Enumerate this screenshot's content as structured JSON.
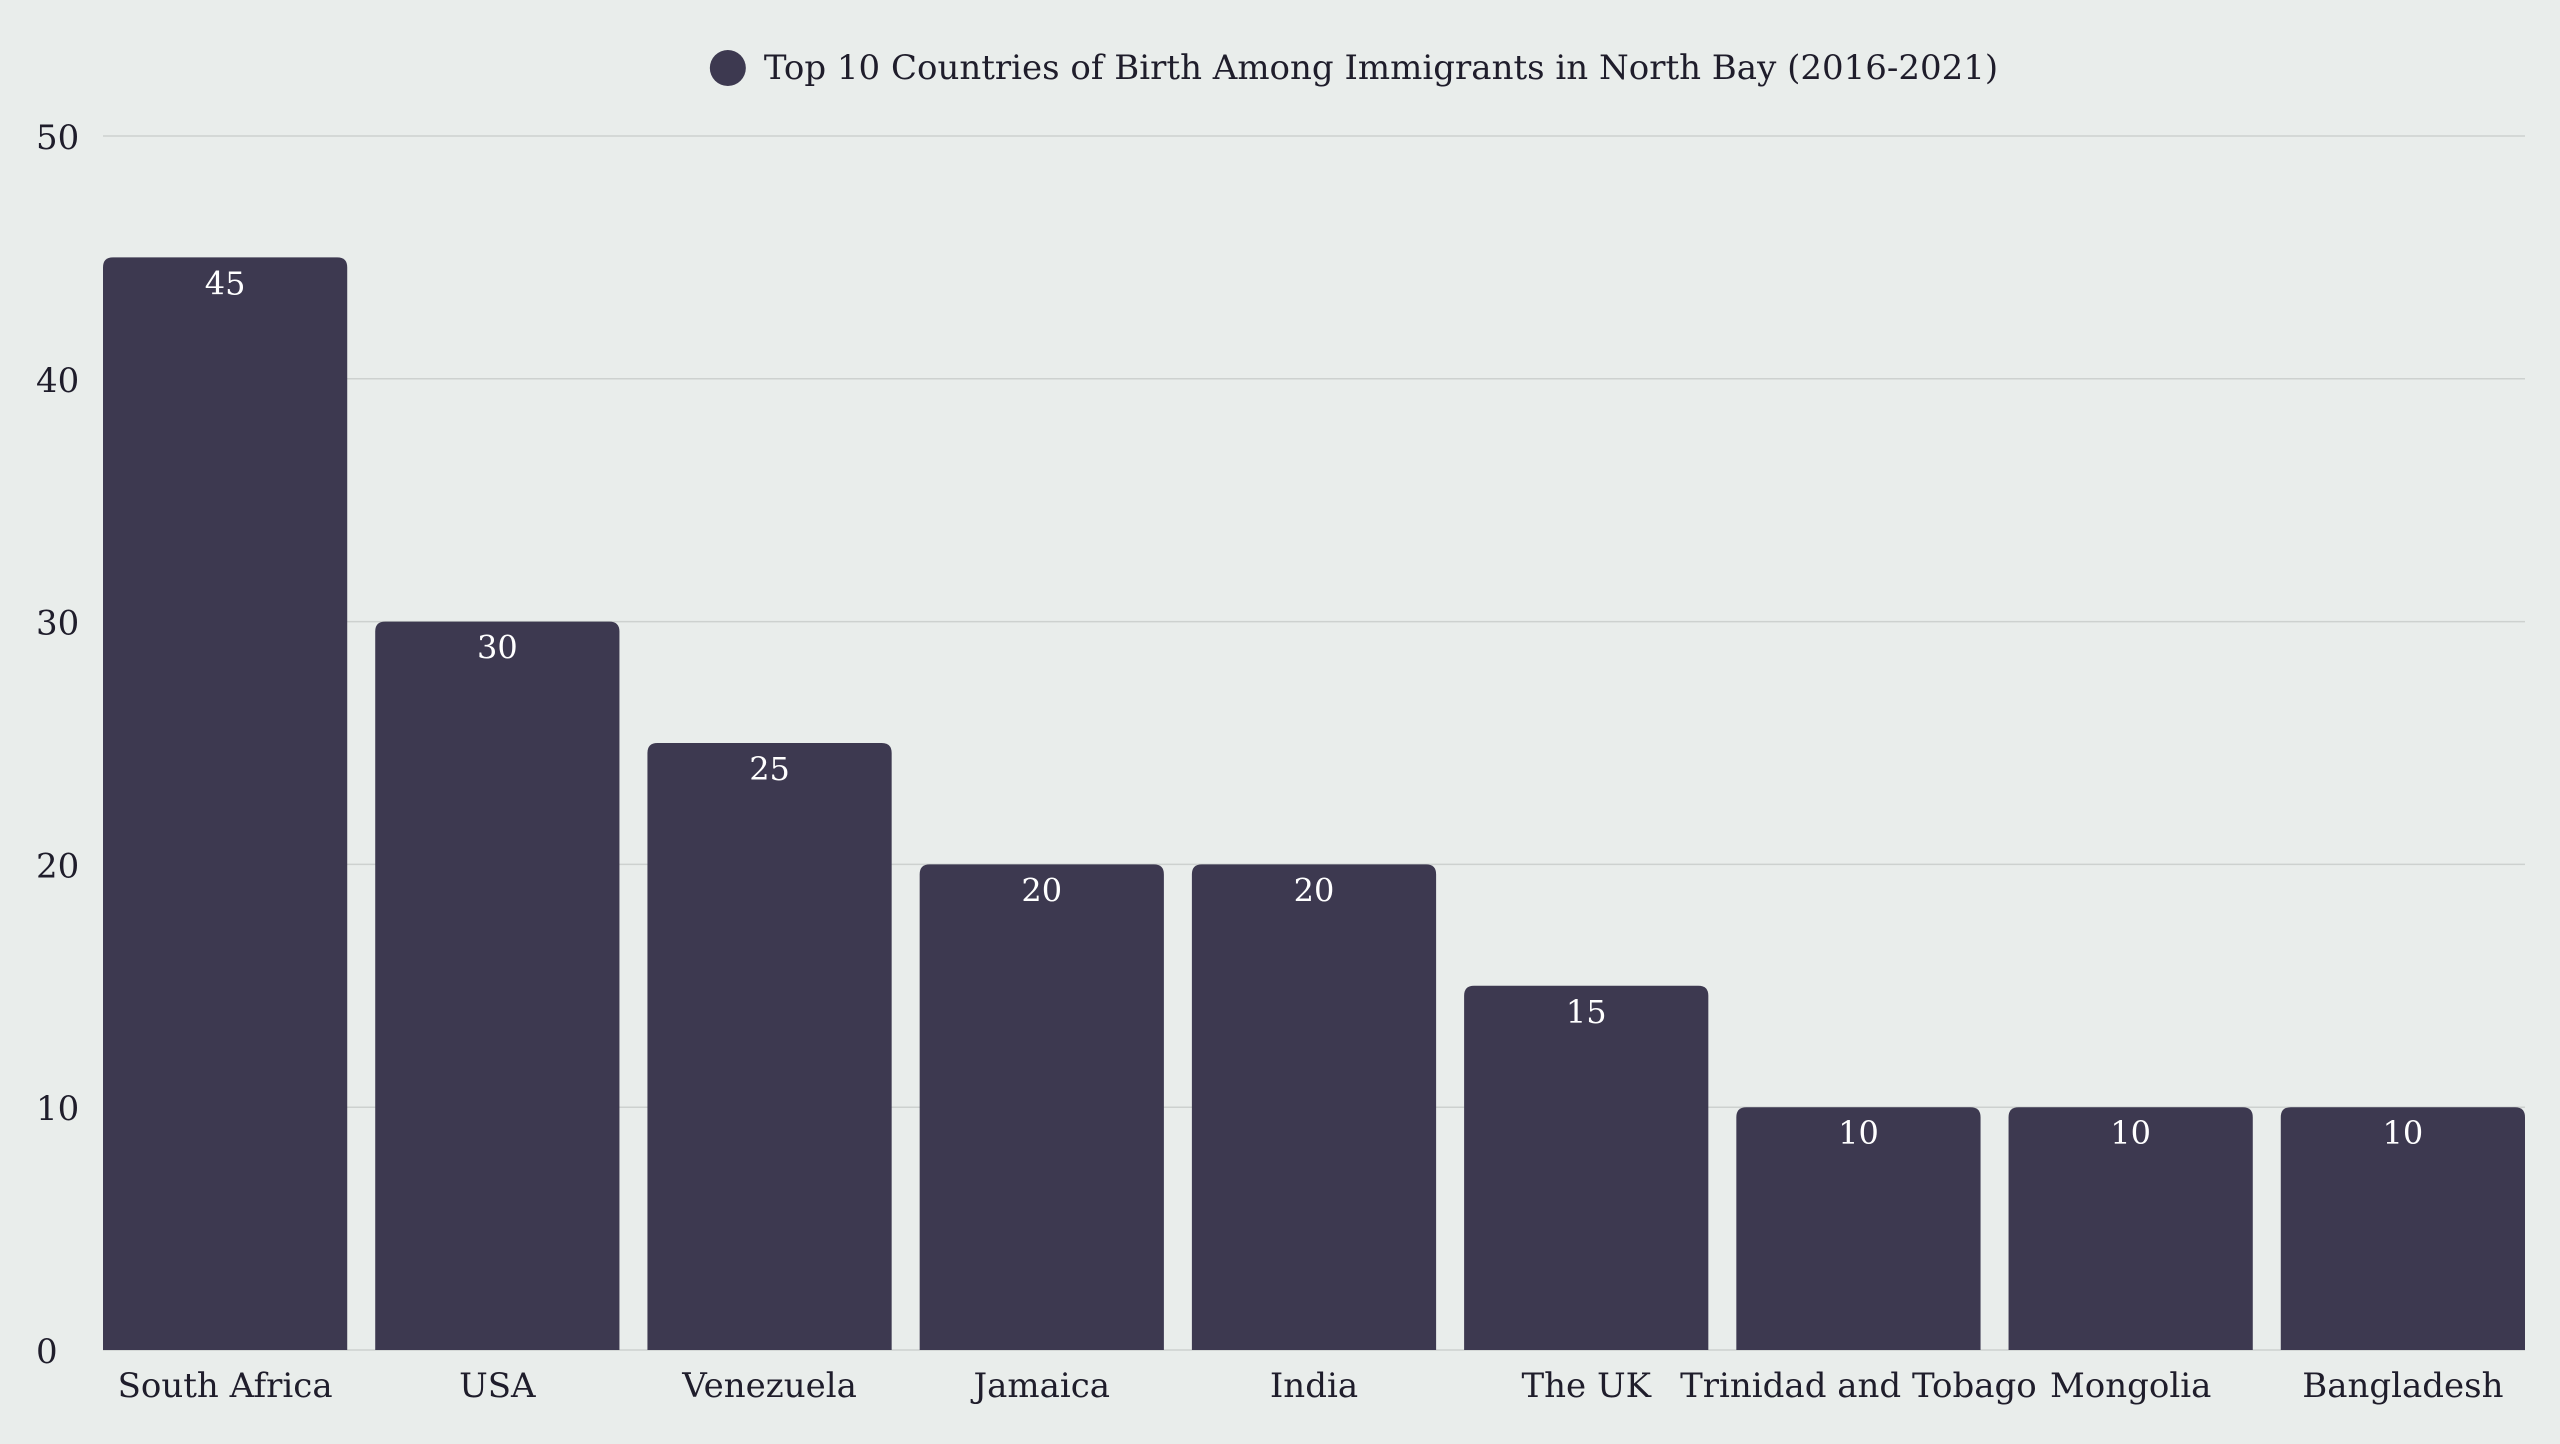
{
  "chart_data": {
    "type": "bar",
    "title": "",
    "legend": {
      "position": "top-center",
      "entries": [
        "Top 10 Countries of Birth Among Immigrants in North Bay (2016-2021)"
      ]
    },
    "categories": [
      "South Africa",
      "USA",
      "Venezuela",
      "Jamaica",
      "India",
      "The UK",
      "Trinidad and Tobago",
      "Mongolia",
      "Bangladesh"
    ],
    "series": [
      {
        "name": "Top 10 Countries of Birth Among Immigrants in North Bay (2016-2021)",
        "values": [
          45,
          30,
          25,
          20,
          20,
          15,
          10,
          10,
          10
        ],
        "color": "#3d3950"
      }
    ],
    "data_labels": [
      "45",
      "30",
      "25",
      "20",
      "20",
      "15",
      "10",
      "10",
      "10"
    ],
    "xlabel": "",
    "ylabel": "",
    "ylim": [
      0,
      50
    ],
    "yticks": [
      0,
      10,
      20,
      30,
      40,
      50
    ],
    "ytick_labels": [
      "0",
      "10",
      "20",
      "30",
      "40",
      "50"
    ],
    "grid": true
  },
  "colors": {
    "background": "#e9edeb",
    "bar": "#3d3950",
    "grid": "#cdd1cf",
    "text": "#1f1d2b",
    "label": "#ffffff"
  }
}
